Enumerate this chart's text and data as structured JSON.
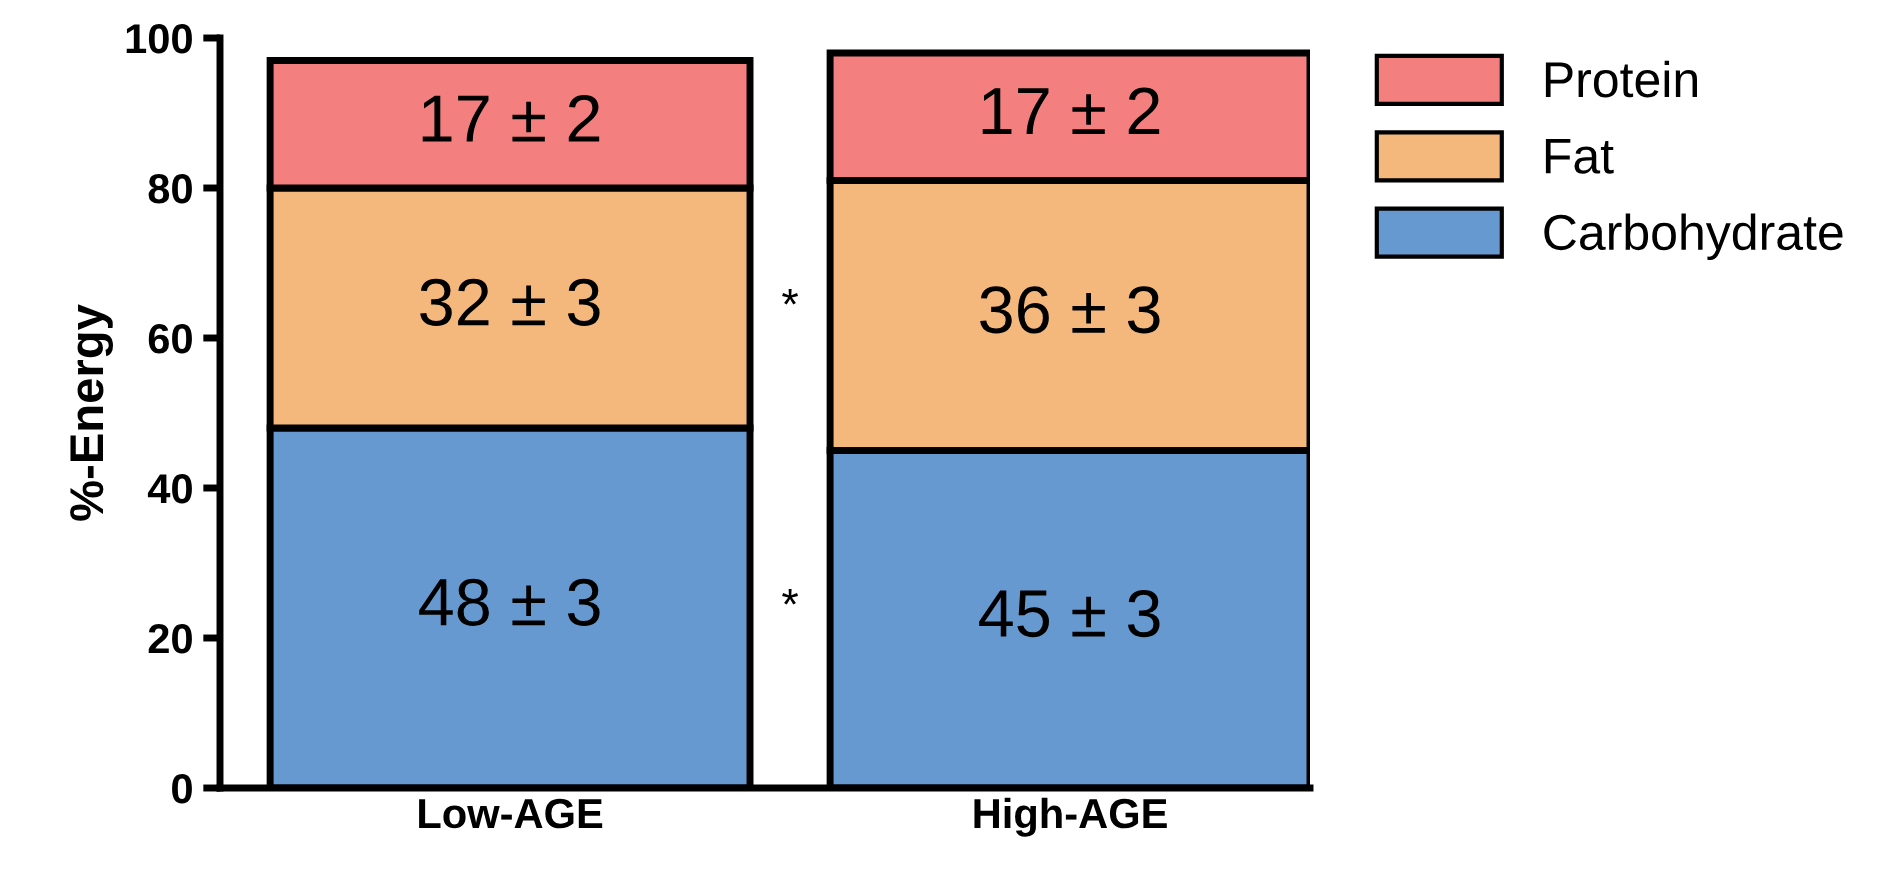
{
  "chart_data": {
    "type": "bar",
    "ylabel": "%-Energy",
    "categories": [
      "Low-AGE",
      "High-AGE"
    ],
    "stacked": true,
    "series": [
      {
        "name": "Carbohydrate",
        "color": "#6699d0",
        "values": [
          48,
          45
        ],
        "value_labels": [
          "48 ± 3",
          "45 ± 3"
        ]
      },
      {
        "name": "Fat",
        "color": "#f4b77c",
        "values": [
          32,
          36
        ],
        "value_labels": [
          "32 ± 3",
          "36 ± 3"
        ]
      },
      {
        "name": "Protein",
        "color": "#f47f7f",
        "values": [
          17,
          17
        ],
        "value_labels": [
          "17 ± 2",
          "17 ± 2"
        ]
      }
    ],
    "ylim": [
      0,
      100
    ],
    "yticks": [
      0,
      20,
      40,
      60,
      80,
      100
    ],
    "grid": false,
    "legend": "right",
    "annotations": [
      "*",
      "*"
    ]
  }
}
